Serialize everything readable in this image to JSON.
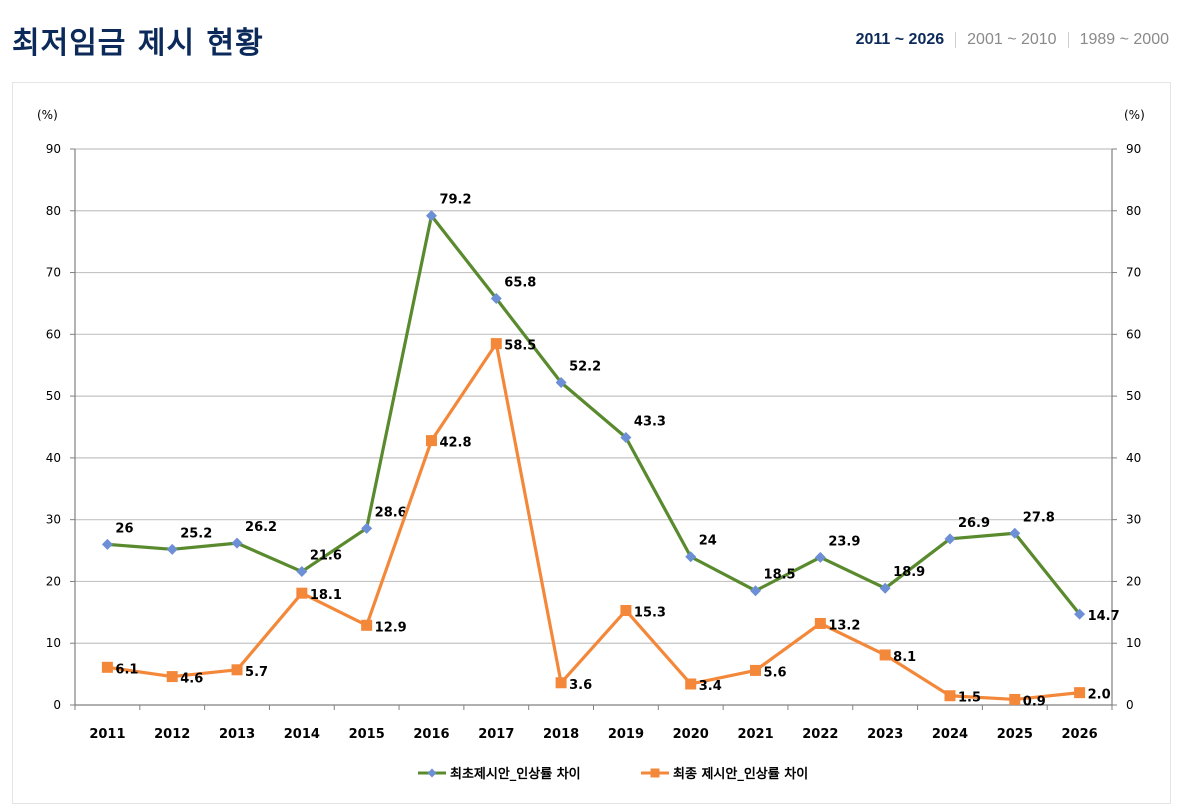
{
  "header": {
    "title": "최저임금 제시 현황",
    "tabs": [
      {
        "label": "2011 ~ 2026",
        "active": true
      },
      {
        "label": "2001 ~ 2010",
        "active": false
      },
      {
        "label": "1989 ~ 2000",
        "active": false
      }
    ]
  },
  "chart_data": {
    "type": "line",
    "title": "",
    "ylabel_left": "(%)",
    "ylabel_right": "(%)",
    "ylim": [
      0,
      90
    ],
    "yticks": [
      0,
      10,
      20,
      30,
      40,
      50,
      60,
      70,
      80,
      90
    ],
    "grid": true,
    "legend_position": "bottom-center",
    "categories": [
      "2011",
      "2012",
      "2013",
      "2014",
      "2015",
      "2016",
      "2017",
      "2018",
      "2019",
      "2020",
      "2021",
      "2022",
      "2023",
      "2024",
      "2025",
      "2026"
    ],
    "series": [
      {
        "name": "최초제시안_인상률 차이",
        "color": "#5a8a2e",
        "marker_color": "#6d8fd6",
        "marker": "diamond",
        "values": [
          26,
          25.2,
          26.2,
          21.6,
          28.6,
          79.2,
          65.8,
          52.2,
          43.3,
          24,
          18.5,
          23.9,
          18.9,
          26.9,
          27.8,
          14.7
        ],
        "labels": [
          "26",
          "25.2",
          "26.2",
          "21.6",
          "28.6",
          "79.2",
          "65.8",
          "52.2",
          "43.3",
          "24",
          "18.5",
          "23.9",
          "18.9",
          "26.9",
          "27.8",
          "14.7"
        ]
      },
      {
        "name": "최종 제시안_인상률 차이",
        "color": "#f4883a",
        "marker_color": "#f4883a",
        "marker": "square",
        "values": [
          6.1,
          4.6,
          5.7,
          18.1,
          12.9,
          42.8,
          58.5,
          3.6,
          15.3,
          3.4,
          5.6,
          13.2,
          8.1,
          1.5,
          0.9,
          2.0
        ],
        "labels": [
          "6.1",
          "4.6",
          "5.7",
          "18.1",
          "12.9",
          "42.8",
          "58.5",
          "3.6",
          "15.3",
          "3.4",
          "5.6",
          "13.2",
          "8.1",
          "1.5",
          "0.9",
          "2.0"
        ]
      }
    ]
  }
}
